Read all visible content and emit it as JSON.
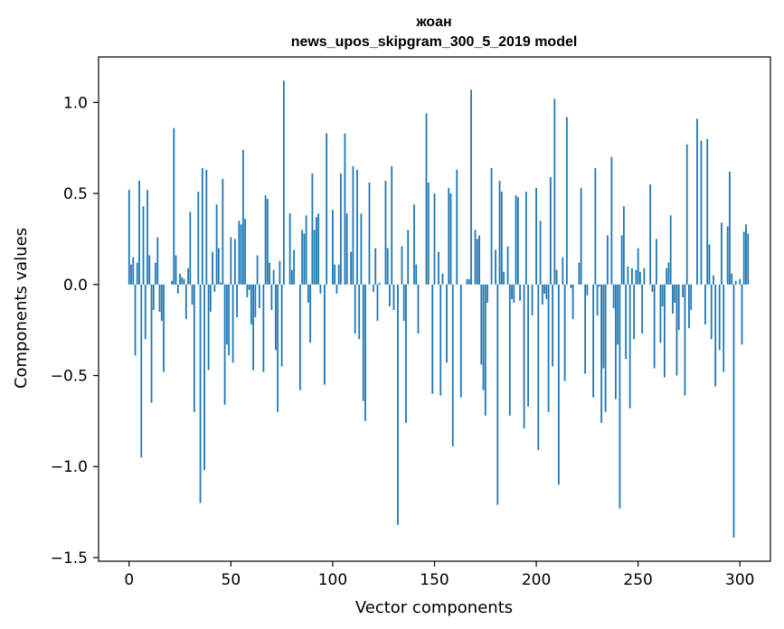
{
  "chart_data": {
    "type": "bar",
    "title_line1": "жоан",
    "title_line2": "news_upos_skipgram_300_5_2019 model",
    "xlabel": "Vector components",
    "ylabel": "Components values",
    "xlim": [
      -15,
      315
    ],
    "ylim": [
      -1.52,
      1.25
    ],
    "xticks": [
      0,
      50,
      100,
      150,
      200,
      250,
      300
    ],
    "xtick_labels": [
      "0",
      "50",
      "100",
      "150",
      "200",
      "250",
      "300"
    ],
    "yticks": [
      -1.5,
      -1.0,
      -0.5,
      0.0,
      0.5,
      1.0
    ],
    "ytick_labels": [
      "−1.5",
      "−1.0",
      "−0.5",
      "0.0",
      "0.5",
      "1.0"
    ],
    "bar_color": "#1f77b4",
    "values": [
      0.52,
      0.11,
      0.15,
      -0.39,
      0.12,
      0.57,
      -0.95,
      0.43,
      -0.3,
      0.52,
      0.16,
      -0.65,
      -0.14,
      0.12,
      0.26,
      -0.15,
      -0.2,
      -0.48,
      0.0,
      0.0,
      0.0,
      0.02,
      0.86,
      0.16,
      -0.05,
      0.06,
      0.04,
      0.03,
      -0.19,
      0.09,
      0.4,
      -0.11,
      -0.7,
      0.0,
      0.51,
      -1.2,
      0.64,
      -1.02,
      0.63,
      -0.47,
      -0.15,
      0.18,
      -0.04,
      0.44,
      0.2,
      0.01,
      0.58,
      -0.66,
      -0.33,
      -0.39,
      0.26,
      -0.43,
      0.25,
      -0.18,
      0.35,
      0.33,
      0.74,
      0.36,
      -0.07,
      -0.03,
      -0.22,
      -0.47,
      -0.18,
      0.16,
      -0.13,
      0.0,
      -0.48,
      0.49,
      0.47,
      0.12,
      -0.14,
      0.08,
      -0.36,
      -0.7,
      0.13,
      -0.45,
      1.12,
      0.0,
      0.0,
      0.39,
      0.08,
      0.19,
      0.0,
      0.0,
      -0.58,
      0.3,
      0.28,
      0.38,
      -0.1,
      -0.32,
      0.61,
      0.3,
      0.37,
      0.39,
      -0.05,
      0.0,
      -0.55,
      0.83,
      0.0,
      0.0,
      0.41,
      0.11,
      -0.05,
      0.11,
      0.61,
      0.0,
      0.83,
      0.39,
      0.0,
      0.18,
      0.65,
      -0.27,
      0.63,
      -0.3,
      0.39,
      -0.64,
      -0.75,
      0.0,
      0.56,
      0.0,
      -0.04,
      0.2,
      -0.2,
      0.01,
      0.0,
      0.0,
      0.57,
      0.2,
      -0.12,
      0.65,
      -0.14,
      0.0,
      -1.32,
      0.0,
      0.21,
      -0.2,
      -0.76,
      0.3,
      0.0,
      0.0,
      0.44,
      0.11,
      -0.27,
      0.0,
      0.0,
      0.0,
      0.94,
      0.56,
      0.0,
      -0.6,
      0.5,
      0.0,
      0.18,
      -0.61,
      0.06,
      0.0,
      -0.43,
      0.53,
      0.5,
      -0.89,
      0.0,
      0.63,
      0.0,
      -0.62,
      0.0,
      0.0,
      0.03,
      0.03,
      1.07,
      0.0,
      0.3,
      0.25,
      0.27,
      -0.44,
      -0.58,
      -0.72,
      -0.1,
      0.0,
      0.64,
      0.0,
      0.19,
      -1.21,
      0.57,
      0.51,
      0.07,
      0.0,
      0.21,
      -0.72,
      -0.08,
      -0.1,
      0.49,
      0.48,
      -0.09,
      0.0,
      -0.79,
      0.51,
      -0.67,
      0.0,
      -0.17,
      0.0,
      0.53,
      -0.91,
      0.35,
      -0.11,
      -0.05,
      -0.08,
      -0.7,
      0.59,
      -0.45,
      1.02,
      0.08,
      -1.1,
      0.0,
      0.15,
      -0.53,
      0.92,
      0.0,
      -0.02,
      -0.19,
      0.0,
      0.0,
      0.12,
      0.53,
      0.0,
      -0.49,
      -0.06,
      0.0,
      0.0,
      -0.62,
      0.64,
      -0.17,
      -0.01,
      -0.76,
      -0.46,
      -0.7,
      0.27,
      0.0,
      0.7,
      -0.13,
      -0.63,
      -0.33,
      -1.23,
      0.27,
      0.43,
      -0.41,
      0.1,
      -0.68,
      0.09,
      -0.3,
      0.08,
      0.2,
      0.07,
      -0.27,
      0.09,
      0.0,
      0.0,
      0.55,
      -0.04,
      -0.46,
      0.25,
      0.0,
      -0.32,
      -0.12,
      -0.51,
      0.09,
      0.12,
      0.38,
      -0.16,
      -0.1,
      -0.5,
      -0.25,
      0.0,
      -0.07,
      -0.61,
      0.77,
      -0.24,
      -0.14,
      0.0,
      0.0,
      0.91,
      0.0,
      0.79,
      0.0,
      -0.22,
      0.8,
      0.22,
      -0.3,
      0.05,
      -0.56,
      0.0,
      -0.36,
      0.34,
      -0.48,
      0.0,
      0.32,
      0.62,
      0.06,
      -1.39,
      0.02,
      0.0,
      0.03,
      -0.33,
      0.29,
      0.33,
      0.28
    ]
  }
}
